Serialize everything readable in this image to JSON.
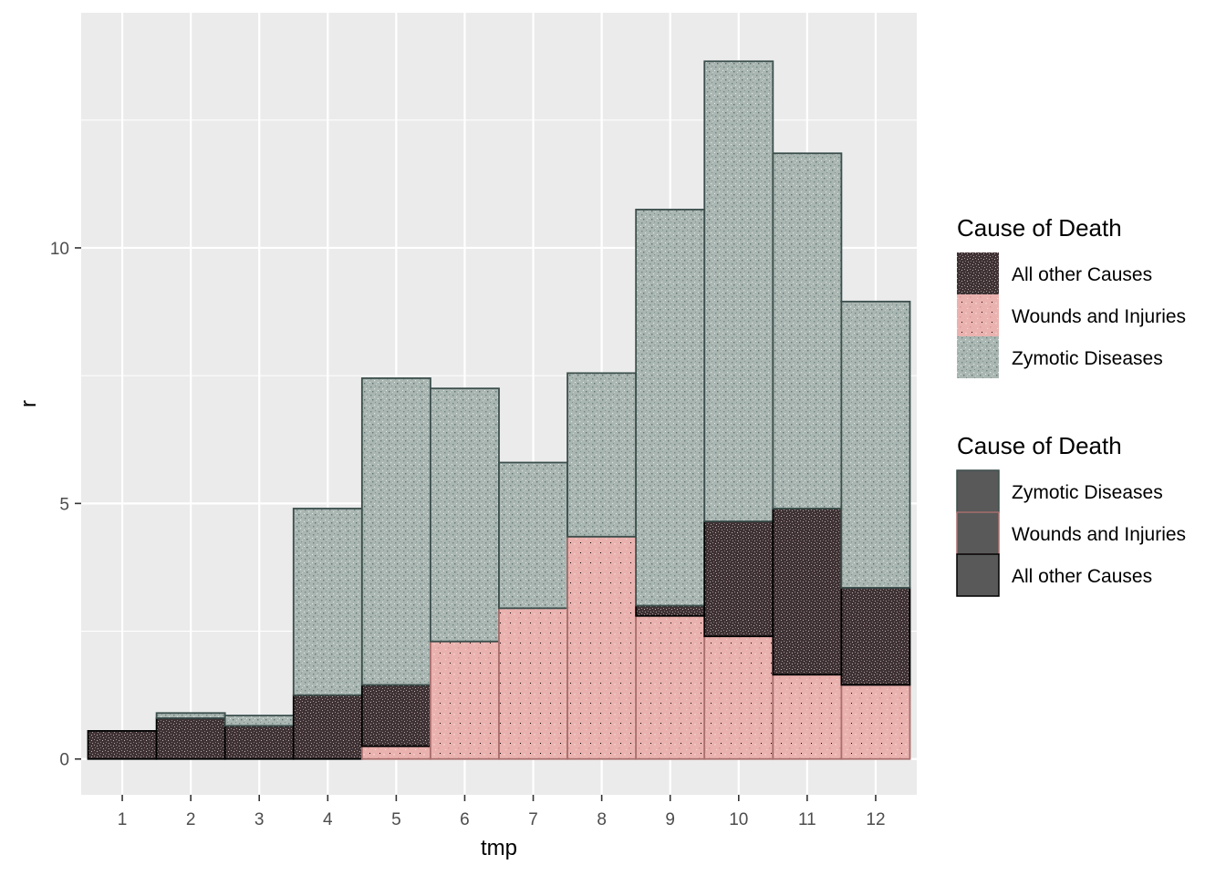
{
  "chart_data": {
    "type": "bar",
    "stacked": true,
    "xlabel": "tmp",
    "ylabel": "r",
    "categories": [
      "1",
      "2",
      "3",
      "4",
      "5",
      "6",
      "7",
      "8",
      "9",
      "10",
      "11",
      "12"
    ],
    "x_ticks": [
      "1",
      "2",
      "3",
      "4",
      "5",
      "6",
      "7",
      "8",
      "9",
      "10",
      "11",
      "12"
    ],
    "y_ticks": [
      0,
      5,
      10
    ],
    "ylim": [
      -0.7,
      14.6
    ],
    "grid": true,
    "legend_position": "right",
    "series": [
      {
        "name": "Wounds and Injuries",
        "color": "#e9b0ae",
        "outline": "#a86f6d",
        "texture": "pink-marble",
        "values": [
          0,
          0,
          0,
          0,
          0.25,
          2.3,
          2.95,
          4.35,
          2.8,
          2.4,
          1.65,
          1.45
        ]
      },
      {
        "name": "All other Causes",
        "color": "#5a4a4c",
        "outline": "#000000",
        "texture": "dark-grain",
        "values": [
          0.55,
          0.8,
          0.65,
          1.25,
          1.2,
          0,
          0,
          0,
          0.2,
          2.25,
          3.25,
          1.9
        ]
      },
      {
        "name": "Zymotic Diseases",
        "color": "#a9b5b1",
        "outline": "#3c4f4c",
        "texture": "grey-granite",
        "values": [
          0,
          0.1,
          0.2,
          3.65,
          6.0,
          4.95,
          2.85,
          3.2,
          7.75,
          9.0,
          6.95,
          5.6
        ]
      }
    ]
  },
  "legends": [
    {
      "title": "Cause of Death",
      "items": [
        {
          "label": "All other Causes",
          "style": "dark-grain"
        },
        {
          "label": "Wounds and Injuries",
          "style": "pink-marble"
        },
        {
          "label": "Zymotic Diseases",
          "style": "grey-granite"
        }
      ]
    },
    {
      "title": "Cause of Death",
      "items": [
        {
          "label": "Zymotic Diseases",
          "fill": "#595959",
          "outline": "#3c4f4c"
        },
        {
          "label": "Wounds and Injuries",
          "fill": "#595959",
          "outline": "#a86f6d"
        },
        {
          "label": "All other Causes",
          "fill": "#595959",
          "outline": "#000000"
        }
      ]
    }
  ]
}
